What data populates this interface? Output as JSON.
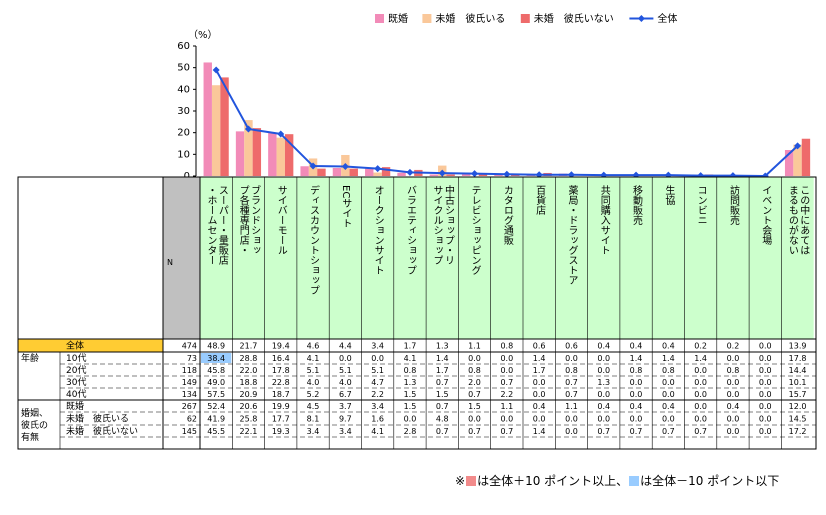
{
  "chart_data": {
    "type": "bar",
    "unit_label": "（%）",
    "ylim": [
      0,
      60
    ],
    "yticks": [
      "0",
      "10",
      "20",
      "30",
      "40",
      "50",
      "60"
    ],
    "categories": [
      "スーパー・量販店・ホームセンター",
      "ブランドショップ各種専門店・",
      "サイバーモール",
      "ディスカウントショップ",
      "ECサイト",
      "オークションサイト",
      "バラエティショップ",
      "中古ショップ・リサイクルショップ",
      "テレビショッピング",
      "カタログ通販",
      "百貨店",
      "薬局・ドラッグストア",
      "共同購入サイト",
      "移動販売",
      "生協",
      "コンビニ",
      "訪問販売",
      "イベント会場",
      "この中にあてはまるものがない"
    ],
    "series": [
      {
        "name": "既婚",
        "color": "#F28BB8",
        "values": [
          52.4,
          20.6,
          19.9,
          4.5,
          3.7,
          3.4,
          1.5,
          0.7,
          1.5,
          1.1,
          0.4,
          1.1,
          0.4,
          0.4,
          0.4,
          0.0,
          0.4,
          0.0,
          12.0
        ]
      },
      {
        "name": "未婚　彼氏いる",
        "color": "#FAC89A",
        "values": [
          41.9,
          25.8,
          17.7,
          8.1,
          9.7,
          1.6,
          0.0,
          4.8,
          0.0,
          0.0,
          0.0,
          0.0,
          0.0,
          0.0,
          0.0,
          0.0,
          0.0,
          0.0,
          14.5
        ]
      },
      {
        "name": "未婚　彼氏いない",
        "color": "#EE6B6B",
        "values": [
          45.5,
          22.1,
          19.3,
          3.4,
          3.4,
          4.1,
          2.8,
          0.7,
          0.7,
          0.7,
          1.4,
          0.0,
          0.7,
          0.7,
          0.7,
          0.7,
          0.0,
          0.0,
          17.2
        ]
      }
    ],
    "line": {
      "name": "全体",
      "color": "#2255DD",
      "values": [
        48.9,
        21.7,
        19.4,
        4.6,
        4.4,
        3.4,
        1.7,
        1.3,
        1.1,
        0.8,
        0.6,
        0.6,
        0.4,
        0.4,
        0.4,
        0.2,
        0.2,
        0.0,
        13.9
      ]
    }
  },
  "table": {
    "n_header": "N",
    "rows": [
      {
        "group": "",
        "label": "全体",
        "n": "474",
        "values": [
          "48.9",
          "21.7",
          "19.4",
          "4.6",
          "4.4",
          "3.4",
          "1.7",
          "1.3",
          "1.1",
          "0.8",
          "0.6",
          "0.6",
          "0.4",
          "0.4",
          "0.4",
          "0.2",
          "0.2",
          "0.0",
          "13.9"
        ]
      },
      {
        "group": "年齢",
        "label": "10代",
        "n": "73",
        "values": [
          "38.4",
          "28.8",
          "16.4",
          "4.1",
          "0.0",
          "0.0",
          "4.1",
          "1.4",
          "0.0",
          "0.0",
          "1.4",
          "0.0",
          "0.0",
          "1.4",
          "1.4",
          "1.4",
          "0.0",
          "0.0",
          "17.8"
        ]
      },
      {
        "group": "",
        "label": "20代",
        "n": "118",
        "values": [
          "45.8",
          "22.0",
          "17.8",
          "5.1",
          "5.1",
          "5.1",
          "0.8",
          "1.7",
          "0.8",
          "0.0",
          "1.7",
          "0.8",
          "0.0",
          "0.8",
          "0.8",
          "0.0",
          "0.8",
          "0.0",
          "14.4"
        ]
      },
      {
        "group": "",
        "label": "30代",
        "n": "149",
        "values": [
          "49.0",
          "18.8",
          "22.8",
          "4.0",
          "4.0",
          "4.7",
          "1.3",
          "0.7",
          "2.0",
          "0.7",
          "0.0",
          "0.7",
          "1.3",
          "0.0",
          "0.0",
          "0.0",
          "0.0",
          "0.0",
          "10.1"
        ]
      },
      {
        "group": "",
        "label": "40代",
        "n": "134",
        "values": [
          "57.5",
          "20.9",
          "18.7",
          "5.2",
          "6.7",
          "2.2",
          "1.5",
          "1.5",
          "0.7",
          "2.2",
          "0.0",
          "0.7",
          "0.0",
          "0.0",
          "0.0",
          "0.0",
          "0.0",
          "0.0",
          "15.7"
        ]
      },
      {
        "group": "婚姻、彼氏の有無",
        "label": "既婚",
        "n": "267",
        "values": [
          "52.4",
          "20.6",
          "19.9",
          "4.5",
          "3.7",
          "3.4",
          "1.5",
          "0.7",
          "1.5",
          "1.1",
          "0.4",
          "1.1",
          "0.4",
          "0.4",
          "0.4",
          "0.0",
          "0.4",
          "0.0",
          "12.0"
        ]
      },
      {
        "group": "",
        "label": "未婚　彼氏いる",
        "n": "62",
        "values": [
          "41.9",
          "25.8",
          "17.7",
          "8.1",
          "9.7",
          "1.6",
          "0.0",
          "4.8",
          "0.0",
          "0.0",
          "0.0",
          "0.0",
          "0.0",
          "0.0",
          "0.0",
          "0.0",
          "0.0",
          "0.0",
          "14.5"
        ]
      },
      {
        "group": "",
        "label": "未婚　彼氏いない",
        "n": "145",
        "values": [
          "45.5",
          "22.1",
          "19.3",
          "3.4",
          "3.4",
          "4.1",
          "2.8",
          "0.7",
          "0.7",
          "0.7",
          "1.4",
          "0.0",
          "0.7",
          "0.7",
          "0.7",
          "0.7",
          "0.0",
          "0.0",
          "17.2"
        ]
      }
    ],
    "group_labels": {
      "age": "年齢",
      "marital": "婚姻、彼氏の有無"
    }
  },
  "colors": {
    "header_green": "#CCFFCC",
    "total_yellow": "#FFCC33",
    "n_gray": "#C0C0C0",
    "highlight_red": "#F28B8B",
    "highlight_blue": "#99CCFF"
  },
  "footnote": {
    "prefix": "※",
    "mid": "は全体＋10 ポイント以上、",
    "end": "は全体－10 ポイント以下"
  }
}
